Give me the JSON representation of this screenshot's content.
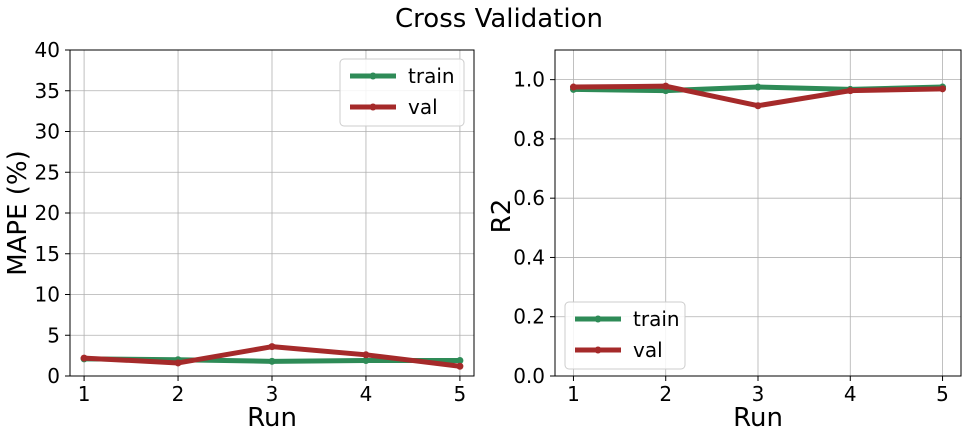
{
  "figure": {
    "title": "Cross Validation"
  },
  "chart_data": [
    {
      "type": "line",
      "title": "",
      "xlabel": "Run",
      "ylabel": "MAPE (%)",
      "x": [
        1,
        2,
        3,
        4,
        5
      ],
      "xticks": [
        "1",
        "2",
        "3",
        "4",
        "5"
      ],
      "yticks": [
        "0",
        "5",
        "10",
        "15",
        "20",
        "25",
        "30",
        "35",
        "40"
      ],
      "xlim": [
        0.85,
        5.15
      ],
      "ylim": [
        0,
        40
      ],
      "grid": true,
      "legend": "upper-right",
      "series": [
        {
          "name": "train",
          "color": "#2e8b57",
          "values": [
            2.1,
            2.0,
            1.8,
            1.9,
            1.9
          ]
        },
        {
          "name": "val",
          "color": "#a52a2a",
          "values": [
            2.2,
            1.6,
            3.6,
            2.6,
            1.2
          ]
        }
      ]
    },
    {
      "type": "line",
      "title": "",
      "xlabel": "Run",
      "ylabel": "R2",
      "x": [
        1,
        2,
        3,
        4,
        5
      ],
      "xticks": [
        "1",
        "2",
        "3",
        "4",
        "5"
      ],
      "yticks": [
        "0.0",
        "0.2",
        "0.4",
        "0.6",
        "0.8",
        "1.0"
      ],
      "xlim": [
        0.8,
        5.2
      ],
      "ylim": [
        0,
        1.1
      ],
      "grid": true,
      "legend": "lower-left",
      "series": [
        {
          "name": "train",
          "color": "#2e8b57",
          "values": [
            0.967,
            0.963,
            0.975,
            0.967,
            0.975
          ]
        },
        {
          "name": "val",
          "color": "#a52a2a",
          "values": [
            0.975,
            0.978,
            0.912,
            0.963,
            0.969
          ]
        }
      ]
    }
  ]
}
